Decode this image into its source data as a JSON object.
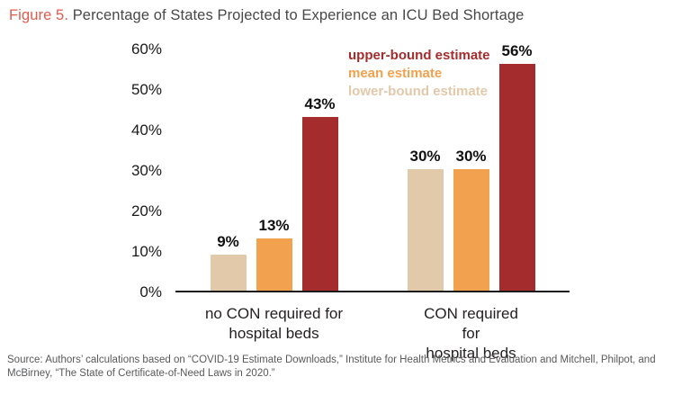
{
  "header": {
    "figure_label": "Figure 5.",
    "title_text": "Percentage of States Projected to Experience an ICU Bed Shortage",
    "figure_label_color": "#df5b4d"
  },
  "legend": {
    "position": "top-right",
    "items": [
      {
        "label": "upper-bound estimate",
        "color": "#a42c2c"
      },
      {
        "label": "mean estimate",
        "color": "#f2a24e"
      },
      {
        "label": "lower-bound estimate",
        "color": "#e2c9a9"
      }
    ]
  },
  "chart_data": {
    "type": "bar",
    "title": "Percentage of States Projected to Experience an ICU Bed Shortage",
    "categories": [
      "no CON required for\nhospital beds",
      "CON required for\nhospital beds"
    ],
    "series": [
      {
        "name": "lower-bound estimate",
        "color": "#e2c9a9",
        "values": [
          9,
          30
        ]
      },
      {
        "name": "mean estimate",
        "color": "#f2a24e",
        "values": [
          13,
          30
        ]
      },
      {
        "name": "upper-bound estimate",
        "color": "#a42c2c",
        "values": [
          43,
          56
        ]
      }
    ],
    "value_suffix": "%",
    "yticks": [
      0,
      10,
      20,
      30,
      40,
      50,
      60
    ],
    "ylim": [
      0,
      60
    ],
    "grid": false,
    "legend_position": "top-right",
    "axis_line_color": "#1a1a1a"
  },
  "footer": {
    "source": "Source: Authors’ calculations based on “COVID-19 Estimate Downloads,” Institute for Health Metrics and Evaluation and Mitchell, Philpot, and McBirney, “The State of Certificate-of-Need Laws in 2020.”"
  }
}
